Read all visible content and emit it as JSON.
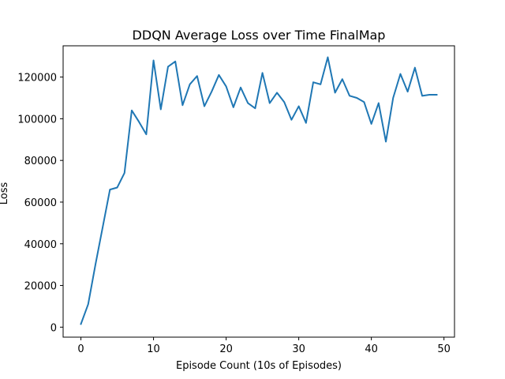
{
  "chart_data": {
    "type": "line",
    "title": "DDQN Average Loss over Time FinalMap",
    "xlabel": "Episode Count (10s of Episodes)",
    "ylabel": "Loss",
    "xlim": [
      -2.45,
      51.45
    ],
    "ylim": [
      -4800,
      135000
    ],
    "xticks": [
      0,
      10,
      20,
      30,
      40,
      50
    ],
    "yticks": [
      0,
      20000,
      40000,
      60000,
      80000,
      100000,
      120000
    ],
    "xtick_labels": [
      "0",
      "10",
      "20",
      "30",
      "40",
      "50"
    ],
    "ytick_labels": [
      "0",
      "20000",
      "40000",
      "60000",
      "80000",
      "100000",
      "120000"
    ],
    "grid": false,
    "series": [
      {
        "color": "#1f77b4",
        "x": [
          0,
          1,
          2,
          3,
          4,
          5,
          6,
          7,
          8,
          9,
          10,
          11,
          12,
          13,
          14,
          15,
          16,
          17,
          18,
          19,
          20,
          21,
          22,
          23,
          24,
          25,
          26,
          27,
          28,
          29,
          30,
          31,
          32,
          33,
          34,
          35,
          36,
          37,
          38,
          39,
          40,
          41,
          42,
          43,
          44,
          45,
          46,
          47,
          48,
          49
        ],
        "values": [
          1500,
          11000,
          30000,
          48000,
          66000,
          67000,
          74000,
          104000,
          98500,
          92500,
          128000,
          104500,
          125000,
          127500,
          106500,
          116500,
          120500,
          106000,
          113000,
          121000,
          115500,
          105500,
          115000,
          107500,
          105000,
          122000,
          107500,
          112500,
          108000,
          99500,
          106000,
          98000,
          117500,
          116500,
          129500,
          112500,
          119000,
          111000,
          110000,
          108000,
          97500,
          107500,
          89000,
          110000,
          121500,
          113000,
          124500,
          111000,
          111500,
          111500
        ]
      }
    ]
  }
}
